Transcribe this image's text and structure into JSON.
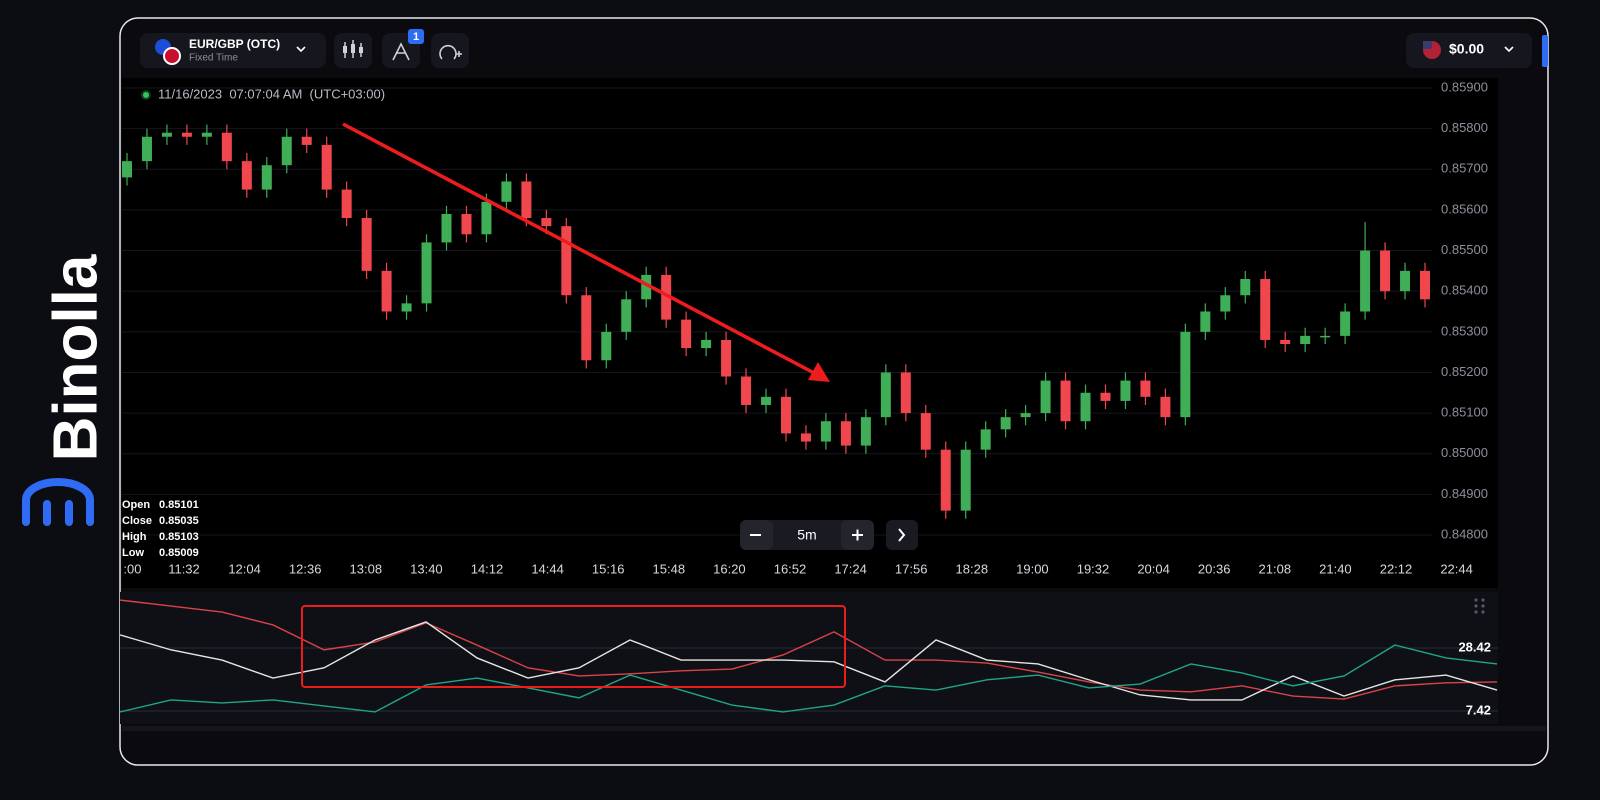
{
  "brand": "Binolla",
  "header": {
    "symbol": "EUR/GBP (OTC)",
    "mode": "Fixed Time",
    "badge": "1",
    "balance": "$0.00"
  },
  "chart_data": [
    {
      "type": "candlestick",
      "timestamp": "11/16/2023  07:07:04 AM  (UTC+03:00)",
      "timeframe": "5m",
      "ohlc_info": [
        {
          "label": "Open",
          "value": "0.85101"
        },
        {
          "label": "Close",
          "value": "0.85035"
        },
        {
          "label": "High",
          "value": "0.85103"
        },
        {
          "label": "Low",
          "value": "0.85009"
        }
      ],
      "up_color": "#3fae57",
      "down_color": "#f0474f",
      "ylim": [
        0.848,
        0.859
      ],
      "yticks": [
        {
          "value": 0.859,
          "label": "0.85900"
        },
        {
          "value": 0.858,
          "label": "0.85800"
        },
        {
          "value": 0.857,
          "label": "0.85700"
        },
        {
          "value": 0.856,
          "label": "0.85600"
        },
        {
          "value": 0.855,
          "label": "0.85500"
        },
        {
          "value": 0.854,
          "label": "0.85400"
        },
        {
          "value": 0.853,
          "label": "0.85300"
        },
        {
          "value": 0.852,
          "label": "0.85200"
        },
        {
          "value": 0.851,
          "label": "0.85100"
        },
        {
          "value": 0.85,
          "label": "0.85000"
        },
        {
          "value": 0.849,
          "label": "0.84900"
        },
        {
          "value": 0.848,
          "label": "0.84800"
        }
      ],
      "xtick_labels": [
        ":00",
        "11:32",
        "12:04",
        "12:36",
        "13:08",
        "13:40",
        "14:12",
        "14:44",
        "15:16",
        "15:48",
        "16:20",
        "16:52",
        "17:24",
        "17:56",
        "18:28",
        "19:00",
        "19:32",
        "20:04",
        "20:36",
        "21:08",
        "21:40",
        "22:12",
        "22:44"
      ],
      "open": [
        0.8568,
        0.8572,
        0.8578,
        0.8579,
        0.8578,
        0.8579,
        0.8572,
        0.8565,
        0.8571,
        0.8578,
        0.8576,
        0.8565,
        0.8558,
        0.8545,
        0.8535,
        0.8537,
        0.8552,
        0.8559,
        0.8554,
        0.8562,
        0.8567,
        0.8558,
        0.8556,
        0.8539,
        0.8523,
        0.853,
        0.8538,
        0.8544,
        0.8533,
        0.8526,
        0.8528,
        0.8519,
        0.8512,
        0.8514,
        0.8505,
        0.8503,
        0.8508,
        0.8502,
        0.8509,
        0.852,
        0.851,
        0.8501,
        0.8486,
        0.8501,
        0.8506,
        0.8509,
        0.851,
        0.8518,
        0.8508,
        0.8515,
        0.8513,
        0.8518,
        0.8514,
        0.8509,
        0.853,
        0.8535,
        0.8539,
        0.8543,
        0.8528,
        0.8527,
        0.8529,
        0.8529,
        0.8535,
        0.855,
        0.854,
        0.8545
      ],
      "high": [
        0.8574,
        0.858,
        0.8581,
        0.8581,
        0.8581,
        0.8581,
        0.8574,
        0.8573,
        0.858,
        0.858,
        0.8578,
        0.8567,
        0.856,
        0.8547,
        0.8539,
        0.8554,
        0.8561,
        0.8561,
        0.8564,
        0.8569,
        0.8569,
        0.856,
        0.8558,
        0.8541,
        0.8532,
        0.854,
        0.8546,
        0.8546,
        0.8535,
        0.853,
        0.853,
        0.8521,
        0.8516,
        0.8516,
        0.8507,
        0.851,
        0.851,
        0.8511,
        0.8522,
        0.8522,
        0.8512,
        0.8503,
        0.8503,
        0.8508,
        0.8511,
        0.8512,
        0.852,
        0.852,
        0.8517,
        0.8517,
        0.852,
        0.852,
        0.8516,
        0.8532,
        0.8537,
        0.8541,
        0.8545,
        0.8545,
        0.853,
        0.8531,
        0.8531,
        0.8537,
        0.8557,
        0.8552,
        0.8547,
        0.8547
      ],
      "low": [
        0.8566,
        0.857,
        0.8576,
        0.8576,
        0.8576,
        0.857,
        0.8563,
        0.8563,
        0.8569,
        0.8574,
        0.8563,
        0.8556,
        0.8543,
        0.8533,
        0.8533,
        0.8535,
        0.855,
        0.8552,
        0.8552,
        0.856,
        0.8556,
        0.8554,
        0.8537,
        0.8521,
        0.8521,
        0.8528,
        0.8536,
        0.8531,
        0.8524,
        0.8524,
        0.8517,
        0.851,
        0.851,
        0.8503,
        0.8501,
        0.8501,
        0.85,
        0.85,
        0.8507,
        0.8508,
        0.8499,
        0.8484,
        0.8484,
        0.8499,
        0.8504,
        0.8507,
        0.8508,
        0.8506,
        0.8506,
        0.8511,
        0.8511,
        0.8512,
        0.8507,
        0.8507,
        0.8528,
        0.8533,
        0.8537,
        0.8526,
        0.8525,
        0.8525,
        0.8527,
        0.8527,
        0.8533,
        0.8538,
        0.8538,
        0.8536
      ],
      "close": [
        0.8572,
        0.8578,
        0.8579,
        0.8578,
        0.8579,
        0.8572,
        0.8565,
        0.8571,
        0.8578,
        0.8576,
        0.8565,
        0.8558,
        0.8545,
        0.8535,
        0.8537,
        0.8552,
        0.8559,
        0.8554,
        0.8562,
        0.8567,
        0.8558,
        0.8556,
        0.8539,
        0.8523,
        0.853,
        0.8538,
        0.8544,
        0.8533,
        0.8526,
        0.8528,
        0.8519,
        0.8512,
        0.8514,
        0.8505,
        0.8503,
        0.8508,
        0.8502,
        0.8509,
        0.852,
        0.851,
        0.8501,
        0.8486,
        0.8501,
        0.8506,
        0.8509,
        0.851,
        0.8518,
        0.8508,
        0.8515,
        0.8513,
        0.8518,
        0.8514,
        0.8509,
        0.853,
        0.8535,
        0.8539,
        0.8543,
        0.8528,
        0.8527,
        0.8529,
        0.8529,
        0.8535,
        0.855,
        0.854,
        0.8545,
        0.8538
      ]
    },
    {
      "type": "line",
      "ylim": [
        4.42,
        44.42
      ],
      "yticks": [
        28.42,
        7.42
      ],
      "series": [
        {
          "color": "#d9434a",
          "values": [
            44.4,
            42.4,
            40.4,
            36.1,
            27.8,
            30.4,
            36.8,
            29.4,
            21.8,
            19.1,
            19.8,
            20.8,
            21.4,
            26.1,
            33.8,
            24.4,
            24.4,
            23.4,
            20.4,
            17.1,
            14.4,
            13.8,
            15.8,
            12.4,
            11.4,
            15.8,
            16.8,
            17.1
          ]
        },
        {
          "color": "#e6e6e6",
          "values": [
            32.8,
            27.8,
            24.4,
            18.4,
            21.8,
            31.1,
            37.1,
            25.1,
            18.4,
            21.8,
            31.1,
            24.4,
            24.4,
            24.4,
            23.8,
            17.1,
            31.1,
            24.4,
            23.1,
            17.8,
            12.8,
            11.1,
            11.1,
            19.1,
            12.4,
            17.8,
            19.4,
            14.4
          ]
        },
        {
          "color": "#1fa58a",
          "values": [
            7.1,
            11.1,
            10.1,
            11.1,
            9.1,
            7.1,
            16.1,
            18.4,
            15.1,
            11.8,
            19.4,
            14.4,
            9.4,
            7.1,
            9.4,
            15.8,
            14.4,
            17.8,
            19.4,
            15.1,
            16.4,
            23.1,
            20.1,
            15.8,
            19.1,
            29.4,
            25.1,
            23.1
          ]
        }
      ]
    }
  ]
}
